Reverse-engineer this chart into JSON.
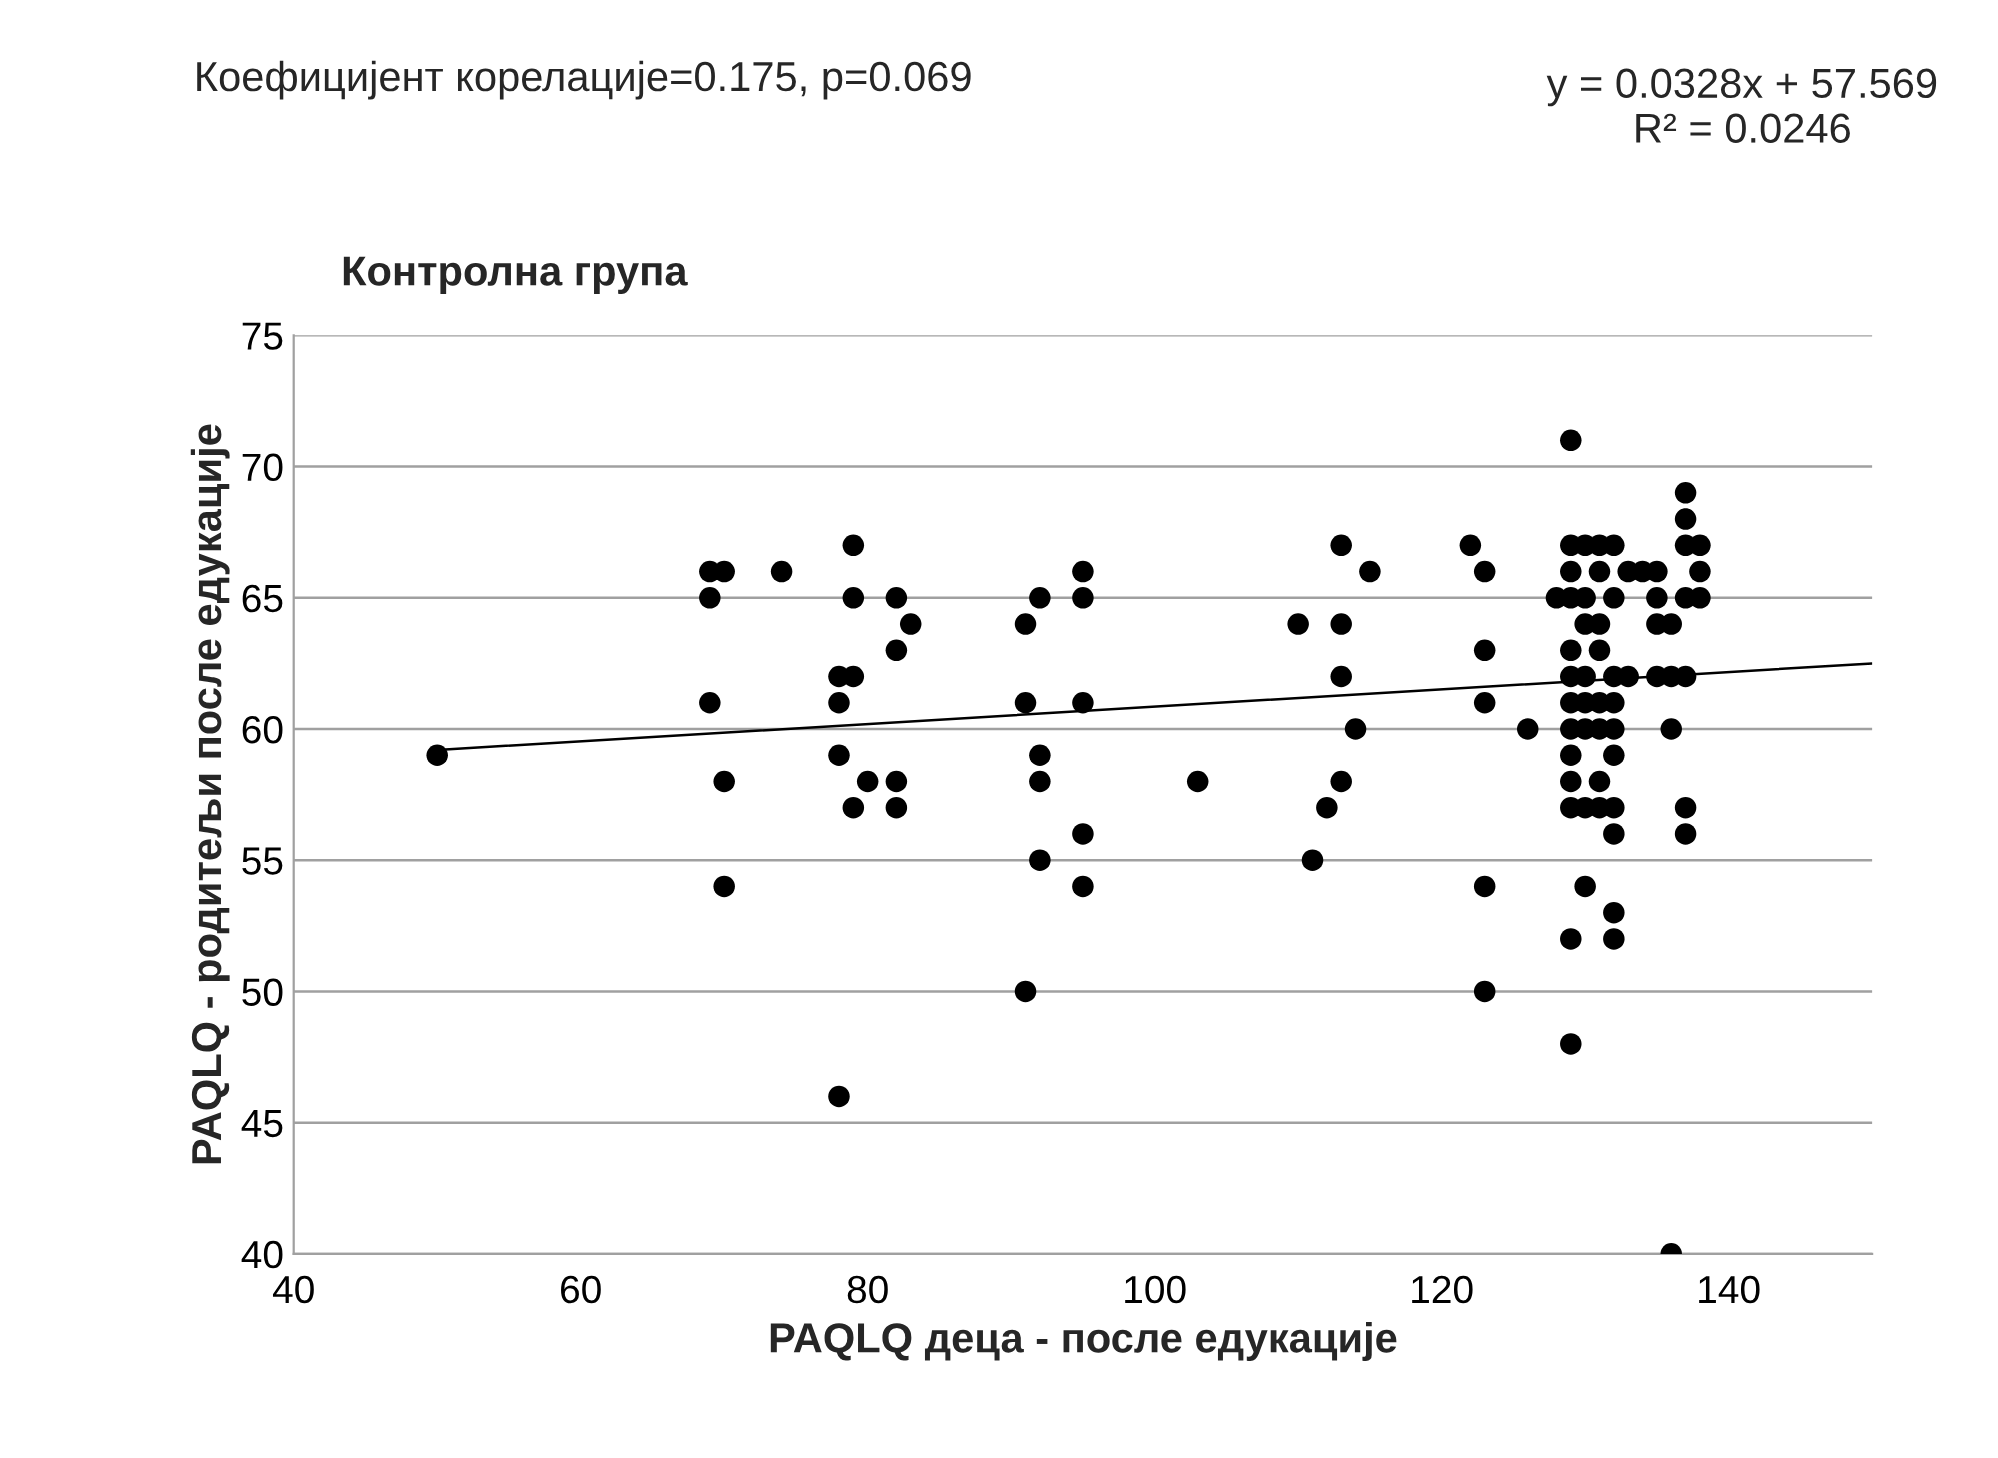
{
  "chart_data": {
    "type": "scatter",
    "title": "Контролна група",
    "xlabel": "PAQLQ деца - после едукације",
    "ylabel": "PAQLQ - родитељи после едукације",
    "annotations": [
      "Коефицијент корелације=0.175, p=0.069",
      "y = 0.0328x + 57.569\nR² = 0.0246"
    ],
    "xlim": [
      40,
      150
    ],
    "xticks": [
      40,
      60,
      80,
      100,
      120,
      140
    ],
    "ylim": [
      40,
      75
    ],
    "yticks": [
      40,
      45,
      50,
      55,
      60,
      65,
      70,
      75
    ],
    "grid": "y",
    "series": [
      {
        "marker": "circle",
        "color": "#000000",
        "x": [
          50,
          69,
          70,
          69,
          69,
          70,
          70,
          74,
          79,
          79,
          82,
          83,
          82,
          78,
          79,
          78,
          78,
          80,
          82,
          79,
          82,
          78,
          91,
          92,
          91,
          92,
          92,
          92,
          91,
          95,
          95,
          95,
          95,
          95,
          103,
          110,
          113,
          115,
          113,
          113,
          114,
          113,
          112,
          111,
          122,
          123,
          123,
          123,
          123,
          123,
          126,
          129,
          128,
          129,
          130,
          131,
          132,
          129,
          131,
          133,
          129,
          130,
          132,
          130,
          131,
          129,
          131,
          129,
          130,
          132,
          133,
          129,
          130,
          131,
          132,
          129,
          130,
          131,
          132,
          129,
          132,
          129,
          131,
          129,
          130,
          131,
          132,
          132,
          130,
          132,
          132,
          129,
          129,
          134,
          135,
          135,
          135,
          136,
          135,
          137,
          136,
          136,
          137,
          137,
          137,
          138,
          138,
          137,
          138,
          137,
          137,
          136
        ],
        "values": [
          59,
          66,
          66,
          65,
          61,
          58,
          54,
          66,
          67,
          65,
          65,
          64,
          63,
          62,
          62,
          61,
          59,
          58,
          58,
          57,
          57,
          46,
          64,
          65,
          61,
          59,
          58,
          55,
          50,
          66,
          65,
          61,
          56,
          54,
          58,
          64,
          67,
          66,
          64,
          62,
          60,
          58,
          57,
          55,
          67,
          66,
          63,
          61,
          54,
          50,
          60,
          71,
          65,
          67,
          67,
          67,
          67,
          66,
          66,
          66,
          65,
          65,
          65,
          64,
          64,
          63,
          63,
          62,
          62,
          62,
          62,
          61,
          61,
          61,
          61,
          60,
          60,
          60,
          60,
          59,
          59,
          58,
          58,
          57,
          57,
          57,
          57,
          56,
          54,
          53,
          52,
          52,
          48,
          66,
          66,
          65,
          64,
          64,
          62,
          62,
          62,
          60,
          69,
          68,
          67,
          67,
          66,
          65,
          65,
          57,
          56,
          40
        ]
      },
      {
        "type": "line",
        "color": "#000000",
        "x": [
          50,
          150
        ],
        "values": [
          59.2,
          62.5
        ],
        "marker": "none"
      }
    ]
  }
}
